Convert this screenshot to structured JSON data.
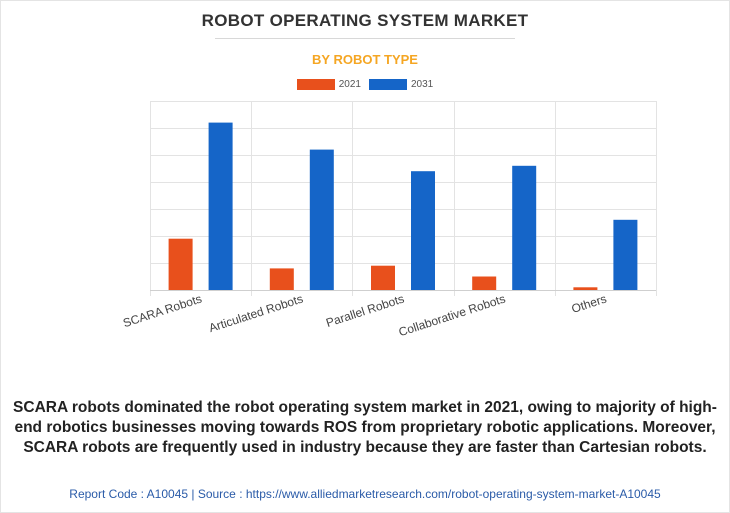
{
  "header": {
    "title": "ROBOT OPERATING SYSTEM MARKET",
    "subtitle": "BY ROBOT TYPE"
  },
  "colors": {
    "series_2021": "#e8501c",
    "series_2031": "#1565c8",
    "subtitle": "#f5a623",
    "footer": "#2a5ba8"
  },
  "chart_data": {
    "type": "bar",
    "categories": [
      "SCARA Robots",
      "Articulated Robots",
      "Parallel Robots",
      "Collaborative Robots",
      "Others"
    ],
    "series": [
      {
        "name": "2021",
        "values": [
          19,
          8,
          9,
          5,
          1
        ]
      },
      {
        "name": "2031",
        "values": [
          62,
          52,
          44,
          46,
          26
        ]
      }
    ],
    "title": "ROBOT OPERATING SYSTEM MARKET",
    "subtitle": "BY ROBOT TYPE",
    "ylim": [
      0,
      70
    ],
    "grid": true,
    "legend": "top-center"
  },
  "caption": "SCARA robots dominated the robot operating system market in 2021, owing to majority of high-end robotics businesses moving towards ROS from proprietary robotic applications. Moreover, SCARA robots are frequently used in industry because they are faster than Cartesian robots.",
  "footer": "Report Code : A10045  |  Source : https://www.alliedmarketresearch.com/robot-operating-system-market-A10045"
}
